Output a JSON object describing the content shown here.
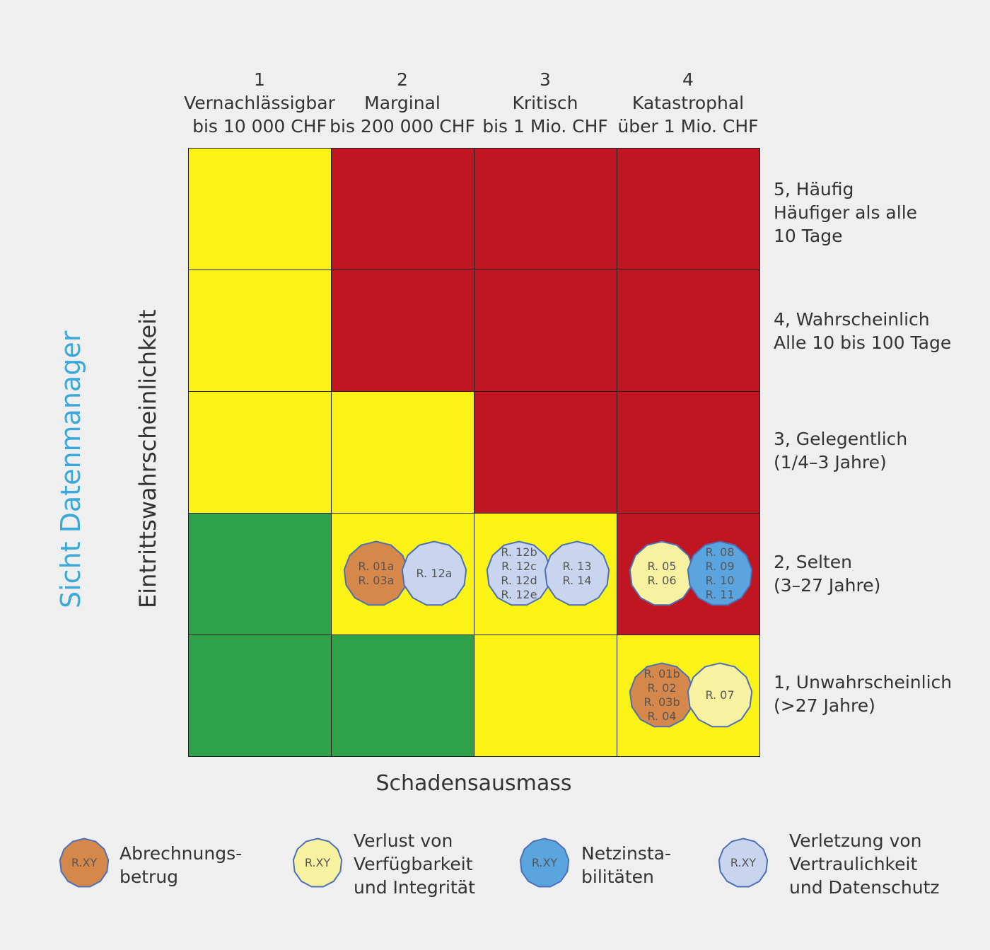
{
  "columns": [
    {
      "number": "1",
      "name": "Vernachlässigbar",
      "range": "bis 10 000 CHF"
    },
    {
      "number": "2",
      "name": "Marginal",
      "range": "bis 200 000 CHF"
    },
    {
      "number": "3",
      "name": "Kritisch",
      "range": "bis 1 Mio. CHF"
    },
    {
      "number": "4",
      "name": "Katastrophal",
      "range": "über 1 Mio. CHF"
    }
  ],
  "rows": [
    {
      "lines": [
        "5, Häufig",
        "Häufiger als alle",
        "10 Tage"
      ]
    },
    {
      "lines": [
        "4, Wahrscheinlich",
        "Alle 10 bis 100 Tage"
      ]
    },
    {
      "lines": [
        "3, Gelegentlich",
        "(1/4–3 Jahre)"
      ]
    },
    {
      "lines": [
        "2, Selten",
        "(3–27 Jahre)"
      ]
    },
    {
      "lines": [
        "1, Unwahrscheinlich",
        "(>27 Jahre)"
      ]
    }
  ],
  "colors": {
    "yellow": "#fbf315",
    "red": "#c01622",
    "green": "#2fa148",
    "orange": "#d6884a",
    "light_yellow": "#f8f1a0",
    "blue": "#5aa5e0",
    "light_blue": "#c9d5ef",
    "badge_stroke": "#4c70b8"
  },
  "cell_colors": [
    [
      "yellow",
      "red",
      "red",
      "red"
    ],
    [
      "yellow",
      "red",
      "red",
      "red"
    ],
    [
      "yellow",
      "yellow",
      "red",
      "red"
    ],
    [
      "green",
      "yellow",
      "yellow",
      "red"
    ],
    [
      "green",
      "green",
      "yellow",
      "yellow"
    ]
  ],
  "risks": [
    {
      "row": 3,
      "col": 1,
      "slot": 0,
      "category": "orange",
      "labels": [
        "R. 01a",
        "R. 03a"
      ]
    },
    {
      "row": 3,
      "col": 1,
      "slot": 1,
      "category": "light_blue",
      "labels": [
        "R. 12a"
      ]
    },
    {
      "row": 3,
      "col": 2,
      "slot": 0,
      "category": "light_blue",
      "labels": [
        "R. 12b",
        "R. 12c",
        "R. 12d",
        "R. 12e"
      ]
    },
    {
      "row": 3,
      "col": 2,
      "slot": 1,
      "category": "light_blue",
      "labels": [
        "R. 13",
        "R. 14"
      ]
    },
    {
      "row": 3,
      "col": 3,
      "slot": 0,
      "category": "light_yellow",
      "labels": [
        "R. 05",
        "R. 06"
      ]
    },
    {
      "row": 3,
      "col": 3,
      "slot": 1,
      "category": "blue",
      "labels": [
        "R. 08",
        "R. 09",
        "R. 10",
        "R. 11"
      ]
    },
    {
      "row": 4,
      "col": 3,
      "slot": 0,
      "category": "orange",
      "labels": [
        "R. 01b",
        "R. 02",
        "R. 03b",
        "R. 04"
      ]
    },
    {
      "row": 4,
      "col": 3,
      "slot": 1,
      "category": "light_yellow",
      "labels": [
        "R. 07"
      ]
    }
  ],
  "x_axis_title": "Schadensausmass",
  "y_axis_title": "Eintrittswahrscheinlichkeit",
  "view_title": "Sicht Datenmanager",
  "legend": [
    {
      "category": "orange",
      "badge_label": "R.XY",
      "lines": [
        "Abrechnungs-",
        "betrug"
      ]
    },
    {
      "category": "light_yellow",
      "badge_label": "R.XY",
      "lines": [
        "Verlust von",
        "Verfügbarkeit",
        "und Integrität"
      ]
    },
    {
      "category": "blue",
      "badge_label": "R.XY",
      "lines": [
        "Netzinsta-",
        "bilitäten"
      ]
    },
    {
      "category": "light_blue",
      "badge_label": "R.XY",
      "lines": [
        "Verletzung von",
        "Vertraulichkeit",
        "und Datenschutz"
      ]
    }
  ]
}
